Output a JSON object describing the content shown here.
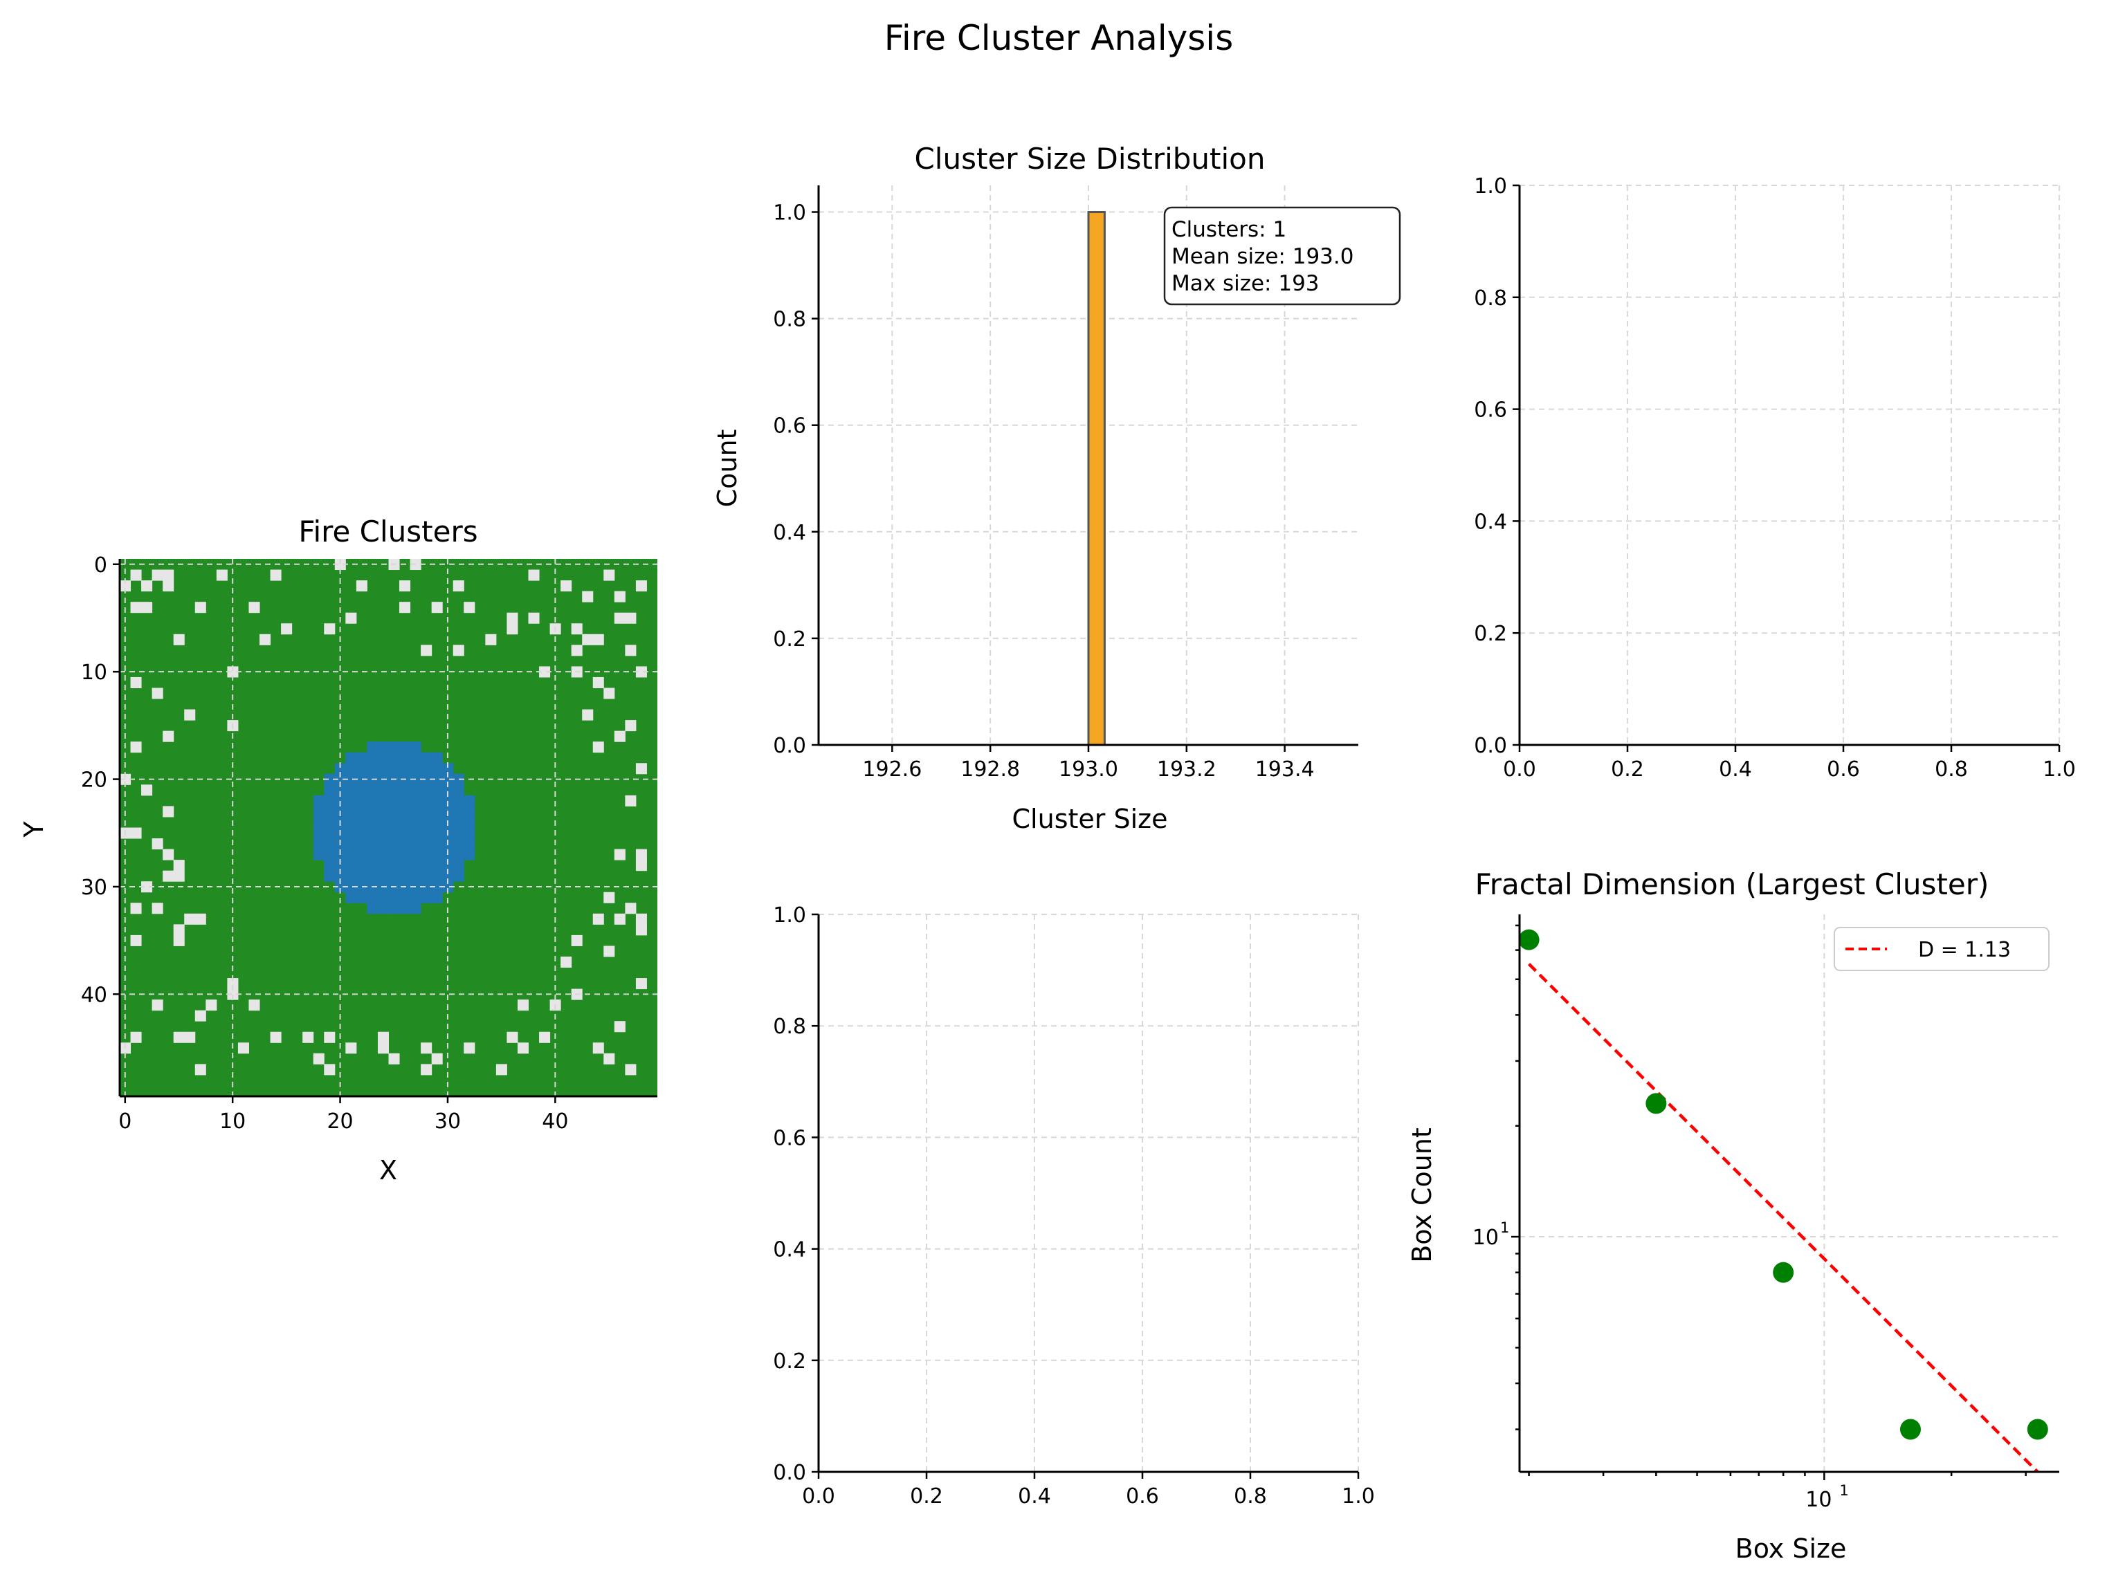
{
  "suptitle": "Fire Cluster Analysis",
  "colors": {
    "forest": "#228b22",
    "burned": "#e6e6e6",
    "cluster": "#1f77b4",
    "hist": "#f5a623",
    "fit": "#ff0000",
    "points": "#008000"
  },
  "chart_data": [
    {
      "type": "heatmap",
      "title": "Fire Clusters",
      "xlabel": "X",
      "ylabel": "Y",
      "grid_size": [
        50,
        50
      ],
      "xticks": [
        0,
        10,
        20,
        30,
        40
      ],
      "yticks": [
        0,
        10,
        20,
        30,
        40
      ],
      "cluster": {
        "center": [
          25.5,
          25
        ],
        "radius": 7.8,
        "size": 193
      },
      "burned_cells": [
        [
          1,
          1
        ],
        [
          3,
          1
        ],
        [
          4,
          1
        ],
        [
          9,
          1
        ],
        [
          14,
          1
        ],
        [
          20,
          0
        ],
        [
          25,
          0
        ],
        [
          27,
          0
        ],
        [
          38,
          1
        ],
        [
          45,
          1
        ],
        [
          0,
          2
        ],
        [
          2,
          2
        ],
        [
          4,
          2
        ],
        [
          22,
          2
        ],
        [
          26,
          2
        ],
        [
          31,
          2
        ],
        [
          41,
          2
        ],
        [
          43,
          3
        ],
        [
          46,
          3
        ],
        [
          1,
          4
        ],
        [
          2,
          4
        ],
        [
          7,
          4
        ],
        [
          12,
          4
        ],
        [
          26,
          4
        ],
        [
          29,
          4
        ],
        [
          32,
          4
        ],
        [
          36,
          5
        ],
        [
          38,
          5
        ],
        [
          48,
          2
        ],
        [
          15,
          6
        ],
        [
          19,
          6
        ],
        [
          21,
          5
        ],
        [
          36,
          6
        ],
        [
          40,
          6
        ],
        [
          42,
          6
        ],
        [
          43,
          7
        ],
        [
          44,
          7
        ],
        [
          46,
          5
        ],
        [
          47,
          5
        ],
        [
          5,
          7
        ],
        [
          13,
          7
        ],
        [
          34,
          7
        ],
        [
          42,
          8
        ],
        [
          47,
          8
        ],
        [
          31,
          8
        ],
        [
          28,
          8
        ],
        [
          10,
          10
        ],
        [
          39,
          10
        ],
        [
          42,
          10
        ],
        [
          1,
          11
        ],
        [
          3,
          12
        ],
        [
          44,
          11
        ],
        [
          45,
          12
        ],
        [
          48,
          10
        ],
        [
          6,
          14
        ],
        [
          10,
          15
        ],
        [
          43,
          14
        ],
        [
          47,
          15
        ],
        [
          1,
          17
        ],
        [
          4,
          16
        ],
        [
          46,
          16
        ],
        [
          44,
          17
        ],
        [
          0,
          20
        ],
        [
          2,
          21
        ],
        [
          48,
          19
        ],
        [
          47,
          22
        ],
        [
          4,
          23
        ],
        [
          0,
          25
        ],
        [
          1,
          25
        ],
        [
          3,
          26
        ],
        [
          4,
          27
        ],
        [
          46,
          27
        ],
        [
          48,
          27
        ],
        [
          48,
          28
        ],
        [
          5,
          28
        ],
        [
          5,
          29
        ],
        [
          4,
          29
        ],
        [
          2,
          30
        ],
        [
          1,
          32
        ],
        [
          3,
          32
        ],
        [
          45,
          31
        ],
        [
          47,
          32
        ],
        [
          46,
          33
        ],
        [
          44,
          33
        ],
        [
          48,
          33
        ],
        [
          6,
          33
        ],
        [
          7,
          33
        ],
        [
          5,
          34
        ],
        [
          5,
          35
        ],
        [
          1,
          35
        ],
        [
          42,
          35
        ],
        [
          48,
          34
        ],
        [
          45,
          36
        ],
        [
          41,
          37
        ],
        [
          48,
          39
        ],
        [
          10,
          39
        ],
        [
          10,
          40
        ],
        [
          8,
          41
        ],
        [
          3,
          41
        ],
        [
          12,
          41
        ],
        [
          37,
          41
        ],
        [
          40,
          41
        ],
        [
          42,
          40
        ],
        [
          7,
          42
        ],
        [
          1,
          44
        ],
        [
          5,
          44
        ],
        [
          6,
          44
        ],
        [
          14,
          44
        ],
        [
          17,
          44
        ],
        [
          19,
          44
        ],
        [
          24,
          44
        ],
        [
          36,
          44
        ],
        [
          39,
          44
        ],
        [
          46,
          43
        ],
        [
          0,
          45
        ],
        [
          11,
          45
        ],
        [
          21,
          45
        ],
        [
          24,
          45
        ],
        [
          28,
          45
        ],
        [
          32,
          45
        ],
        [
          37,
          45
        ],
        [
          44,
          45
        ],
        [
          18,
          46
        ],
        [
          25,
          46
        ],
        [
          29,
          46
        ],
        [
          45,
          46
        ],
        [
          7,
          47
        ],
        [
          19,
          47
        ],
        [
          28,
          47
        ],
        [
          35,
          47
        ],
        [
          47,
          47
        ]
      ]
    },
    {
      "type": "bar",
      "title": "Cluster Size Distribution",
      "xlabel": "Cluster Size",
      "ylabel": "Count",
      "xlim": [
        192.45,
        193.55
      ],
      "ylim": [
        0,
        1.05
      ],
      "bars": [
        {
          "x0": 193.0,
          "x1": 193.033,
          "value": 1.0
        }
      ],
      "xticks": [
        192.6,
        192.8,
        193.0,
        193.2,
        193.4
      ],
      "yticks": [
        0.0,
        0.2,
        0.4,
        0.6,
        0.8,
        1.0
      ],
      "annotation": [
        "Clusters: 1",
        "Mean size: 193.0",
        "Max size: 193"
      ]
    },
    {
      "type": "scatter",
      "title": "",
      "xlim": [
        0,
        1
      ],
      "ylim": [
        0,
        1
      ],
      "ticks": [
        0.0,
        0.2,
        0.4,
        0.6,
        0.8,
        1.0
      ],
      "values": []
    },
    {
      "type": "scatter",
      "title": "",
      "xlim": [
        0,
        1
      ],
      "ylim": [
        0,
        1
      ],
      "ticks": [
        0.0,
        0.2,
        0.4,
        0.6,
        0.8,
        1.0
      ],
      "values": []
    },
    {
      "type": "scatter",
      "title": "Fractal Dimension (Largest Cluster)",
      "xlabel": "Box Size",
      "ylabel": "Box Count",
      "x_scale": "log",
      "y_scale": "log",
      "xlim": [
        1.9,
        36
      ],
      "ylim": [
        2.3,
        75
      ],
      "points": [
        [
          2,
          64
        ],
        [
          4,
          23
        ],
        [
          8,
          8
        ],
        [
          16,
          3
        ],
        [
          32,
          3
        ]
      ],
      "fit_line": {
        "x": [
          2,
          32
        ],
        "y": [
          55,
          2.3
        ]
      },
      "legend": "D = 1.13",
      "legend_position": "top-right",
      "major_ticks_label": "10",
      "major_ticks_exp": "1"
    }
  ]
}
